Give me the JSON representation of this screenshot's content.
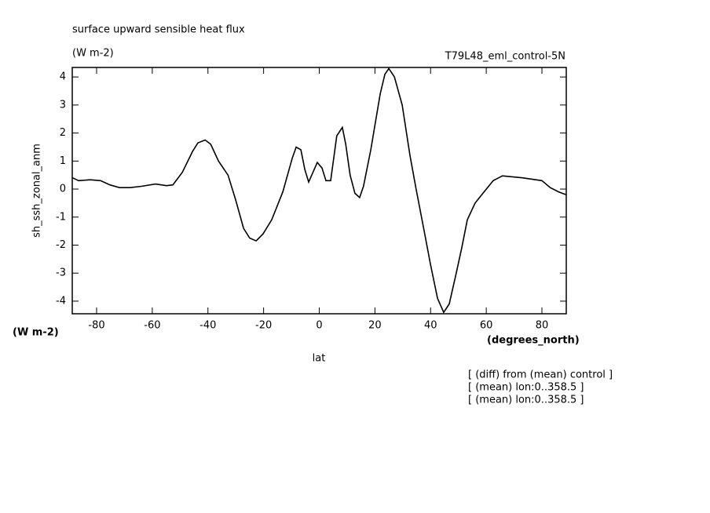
{
  "chart_data": {
    "type": "line",
    "title": "surface upward sensible heat flux",
    "subtitle": "(W m-2)",
    "run_label": "T79L48_eml_control-5N",
    "y_label": "sh_ssh_zonal_anm",
    "y_unit": "(W m-2)",
    "x_unit": "(degrees_north)",
    "x_label": "lat",
    "notes": [
      "[ (diff) from (mean) control ]",
      "[ (mean) lon:0..358.5 ]",
      "[ (mean) lon:0..358.5 ]"
    ],
    "x": [
      -88.6,
      -86.5,
      -82.3,
      -78.6,
      -75.2,
      -71.8,
      -68,
      -63.9,
      -58.8,
      -54.9,
      -52.6,
      -49.2,
      -45.5,
      -43.6,
      -41,
      -39,
      -36.2,
      -32.8,
      -30,
      -27.2,
      -25,
      -22.7,
      -20.2,
      -17.1,
      -13.1,
      -9.7,
      -8.3,
      -6.6,
      -5.2,
      -3.8,
      -0.7,
      1,
      2.4,
      4.1,
      6.3,
      8.3,
      9.5,
      11.1,
      12.8,
      14.5,
      15.9,
      18.5,
      21.9,
      23.6,
      25,
      27,
      29.8,
      32.6,
      34.8,
      37.7,
      40,
      42.5,
      44.7,
      46.7,
      49,
      51.2,
      53.2,
      56,
      58.8,
      62.5,
      65.8,
      73,
      80,
      83,
      86,
      88.7
    ],
    "series": [
      {
        "name": "sh_ssh_zonal_anm",
        "color": "#000000",
        "values": [
          0.4,
          0.3,
          0.33,
          0.3,
          0.15,
          0.05,
          0.05,
          0.1,
          0.18,
          0.12,
          0.15,
          0.6,
          1.35,
          1.65,
          1.75,
          1.6,
          1.0,
          0.5,
          -0.4,
          -1.4,
          -1.75,
          -1.85,
          -1.6,
          -1.1,
          -0.1,
          1.1,
          1.5,
          1.4,
          0.7,
          0.25,
          0.95,
          0.75,
          0.3,
          0.3,
          1.9,
          2.2,
          1.6,
          0.5,
          -0.15,
          -0.3,
          0.1,
          1.4,
          3.4,
          4.1,
          4.3,
          4.0,
          3.0,
          1.2,
          0,
          -1.5,
          -2.7,
          -3.9,
          -4.4,
          -4.1,
          -3.1,
          -2.1,
          -1.1,
          -0.5,
          -0.15,
          0.3,
          0.47,
          0.4,
          0.3,
          0.05,
          -0.1,
          -0.2
        ]
      }
    ],
    "xlim": [
      -88.75,
      88.75
    ],
    "xticks": [
      -80,
      -60,
      -40,
      -20,
      0,
      20,
      40,
      60,
      80
    ],
    "ylim": [
      -4.45,
      4.34
    ],
    "yticks": [
      -4,
      -3,
      -2,
      -1,
      0,
      1,
      2,
      3,
      4
    ]
  }
}
